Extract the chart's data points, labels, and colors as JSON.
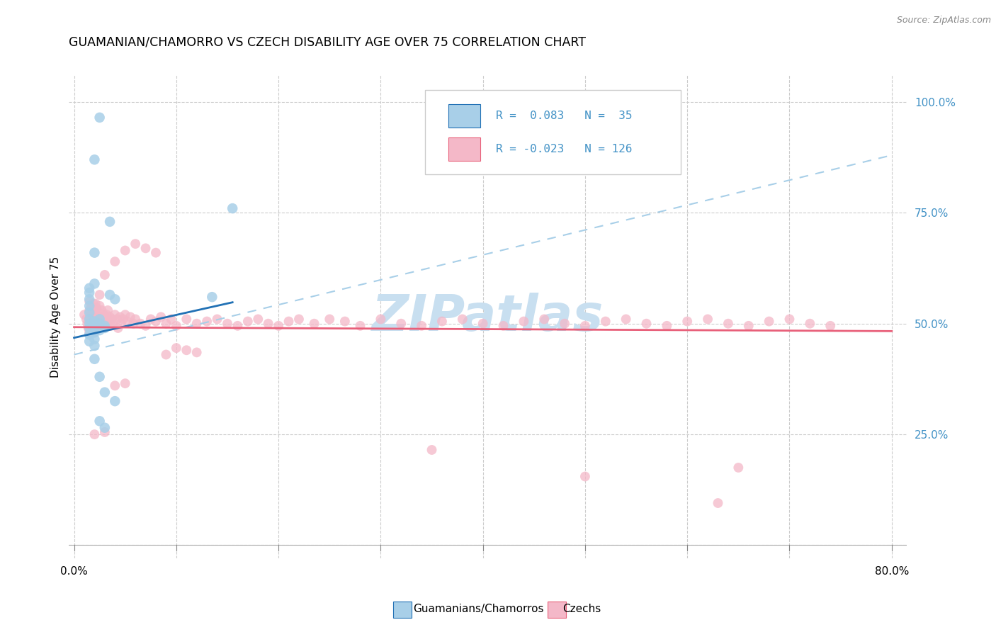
{
  "title": "GUAMANIAN/CHAMORRO VS CZECH DISABILITY AGE OVER 75 CORRELATION CHART",
  "source": "Source: ZipAtlas.com",
  "ylabel": "Disability Age Over 75",
  "legend_label1": "Guamanians/Chamorros",
  "legend_label2": "Czechs",
  "r1": 0.083,
  "n1": 35,
  "r2": -0.023,
  "n2": 126,
  "color_blue": "#a8cfe8",
  "color_pink": "#f4b8c8",
  "color_blue_line": "#2171b5",
  "color_pink_line": "#e8607a",
  "color_trendline_dash": "#a8cfe8",
  "watermark_color": "#c8dff0",
  "right_ytick_color": "#4292c6",
  "xlim": [
    0.0,
    0.8
  ],
  "ylim": [
    0.0,
    1.05
  ],
  "blue_scatter_x": [
    0.015,
    0.015,
    0.015,
    0.015,
    0.015,
    0.015,
    0.015,
    0.015,
    0.015,
    0.015,
    0.02,
    0.02,
    0.02,
    0.02,
    0.02,
    0.025,
    0.025,
    0.025,
    0.03,
    0.03,
    0.035,
    0.04,
    0.02,
    0.025,
    0.035,
    0.135,
    0.155,
    0.025,
    0.03,
    0.04,
    0.02,
    0.02,
    0.02,
    0.025,
    0.03
  ],
  "blue_scatter_y": [
    0.51,
    0.525,
    0.54,
    0.555,
    0.49,
    0.475,
    0.46,
    0.57,
    0.58,
    0.5,
    0.505,
    0.495,
    0.48,
    0.465,
    0.45,
    0.51,
    0.5,
    0.485,
    0.49,
    0.495,
    0.565,
    0.555,
    0.87,
    0.965,
    0.73,
    0.56,
    0.76,
    0.28,
    0.265,
    0.325,
    0.59,
    0.66,
    0.42,
    0.38,
    0.345
  ],
  "pink_scatter_x": [
    0.01,
    0.012,
    0.013,
    0.014,
    0.015,
    0.015,
    0.015,
    0.016,
    0.016,
    0.017,
    0.018,
    0.018,
    0.019,
    0.019,
    0.02,
    0.02,
    0.02,
    0.02,
    0.02,
    0.02,
    0.021,
    0.021,
    0.022,
    0.022,
    0.022,
    0.023,
    0.023,
    0.024,
    0.024,
    0.025,
    0.025,
    0.025,
    0.026,
    0.026,
    0.027,
    0.027,
    0.028,
    0.028,
    0.029,
    0.03,
    0.03,
    0.031,
    0.032,
    0.033,
    0.034,
    0.035,
    0.036,
    0.037,
    0.038,
    0.04,
    0.042,
    0.043,
    0.045,
    0.046,
    0.048,
    0.05,
    0.052,
    0.055,
    0.058,
    0.06,
    0.065,
    0.07,
    0.075,
    0.08,
    0.085,
    0.09,
    0.095,
    0.1,
    0.11,
    0.12,
    0.13,
    0.14,
    0.15,
    0.16,
    0.17,
    0.18,
    0.19,
    0.2,
    0.21,
    0.22,
    0.235,
    0.25,
    0.265,
    0.28,
    0.3,
    0.32,
    0.34,
    0.36,
    0.38,
    0.4,
    0.42,
    0.44,
    0.46,
    0.48,
    0.5,
    0.52,
    0.54,
    0.56,
    0.58,
    0.6,
    0.62,
    0.64,
    0.66,
    0.68,
    0.7,
    0.72,
    0.74,
    0.02,
    0.025,
    0.03,
    0.35,
    0.5,
    0.63,
    0.65,
    0.03,
    0.04,
    0.05,
    0.06,
    0.07,
    0.08,
    0.09,
    0.1,
    0.11,
    0.12,
    0.04,
    0.05
  ],
  "pink_scatter_y": [
    0.52,
    0.51,
    0.5,
    0.49,
    0.48,
    0.53,
    0.55,
    0.515,
    0.495,
    0.54,
    0.505,
    0.525,
    0.535,
    0.545,
    0.51,
    0.5,
    0.49,
    0.48,
    0.52,
    0.53,
    0.515,
    0.545,
    0.5,
    0.49,
    0.535,
    0.515,
    0.505,
    0.49,
    0.525,
    0.51,
    0.5,
    0.54,
    0.515,
    0.495,
    0.53,
    0.51,
    0.5,
    0.49,
    0.52,
    0.515,
    0.505,
    0.51,
    0.52,
    0.53,
    0.505,
    0.515,
    0.495,
    0.51,
    0.5,
    0.52,
    0.51,
    0.49,
    0.515,
    0.5,
    0.51,
    0.52,
    0.505,
    0.515,
    0.5,
    0.51,
    0.5,
    0.495,
    0.51,
    0.505,
    0.515,
    0.5,
    0.51,
    0.495,
    0.51,
    0.5,
    0.505,
    0.51,
    0.5,
    0.495,
    0.505,
    0.51,
    0.5,
    0.495,
    0.505,
    0.51,
    0.5,
    0.51,
    0.505,
    0.495,
    0.51,
    0.5,
    0.495,
    0.505,
    0.51,
    0.5,
    0.495,
    0.505,
    0.51,
    0.5,
    0.495,
    0.505,
    0.51,
    0.5,
    0.495,
    0.505,
    0.51,
    0.5,
    0.495,
    0.505,
    0.51,
    0.5,
    0.495,
    0.25,
    0.565,
    0.255,
    0.215,
    0.155,
    0.095,
    0.175,
    0.61,
    0.64,
    0.665,
    0.68,
    0.67,
    0.66,
    0.43,
    0.445,
    0.44,
    0.435,
    0.36,
    0.365
  ],
  "xticks": [
    0.0,
    0.1,
    0.2,
    0.3,
    0.4,
    0.5,
    0.6,
    0.7,
    0.8
  ],
  "yticks": [
    0.0,
    0.25,
    0.5,
    0.75,
    1.0
  ],
  "ytick_labels": [
    "",
    "25.0%",
    "50.0%",
    "75.0%",
    "100.0%"
  ]
}
